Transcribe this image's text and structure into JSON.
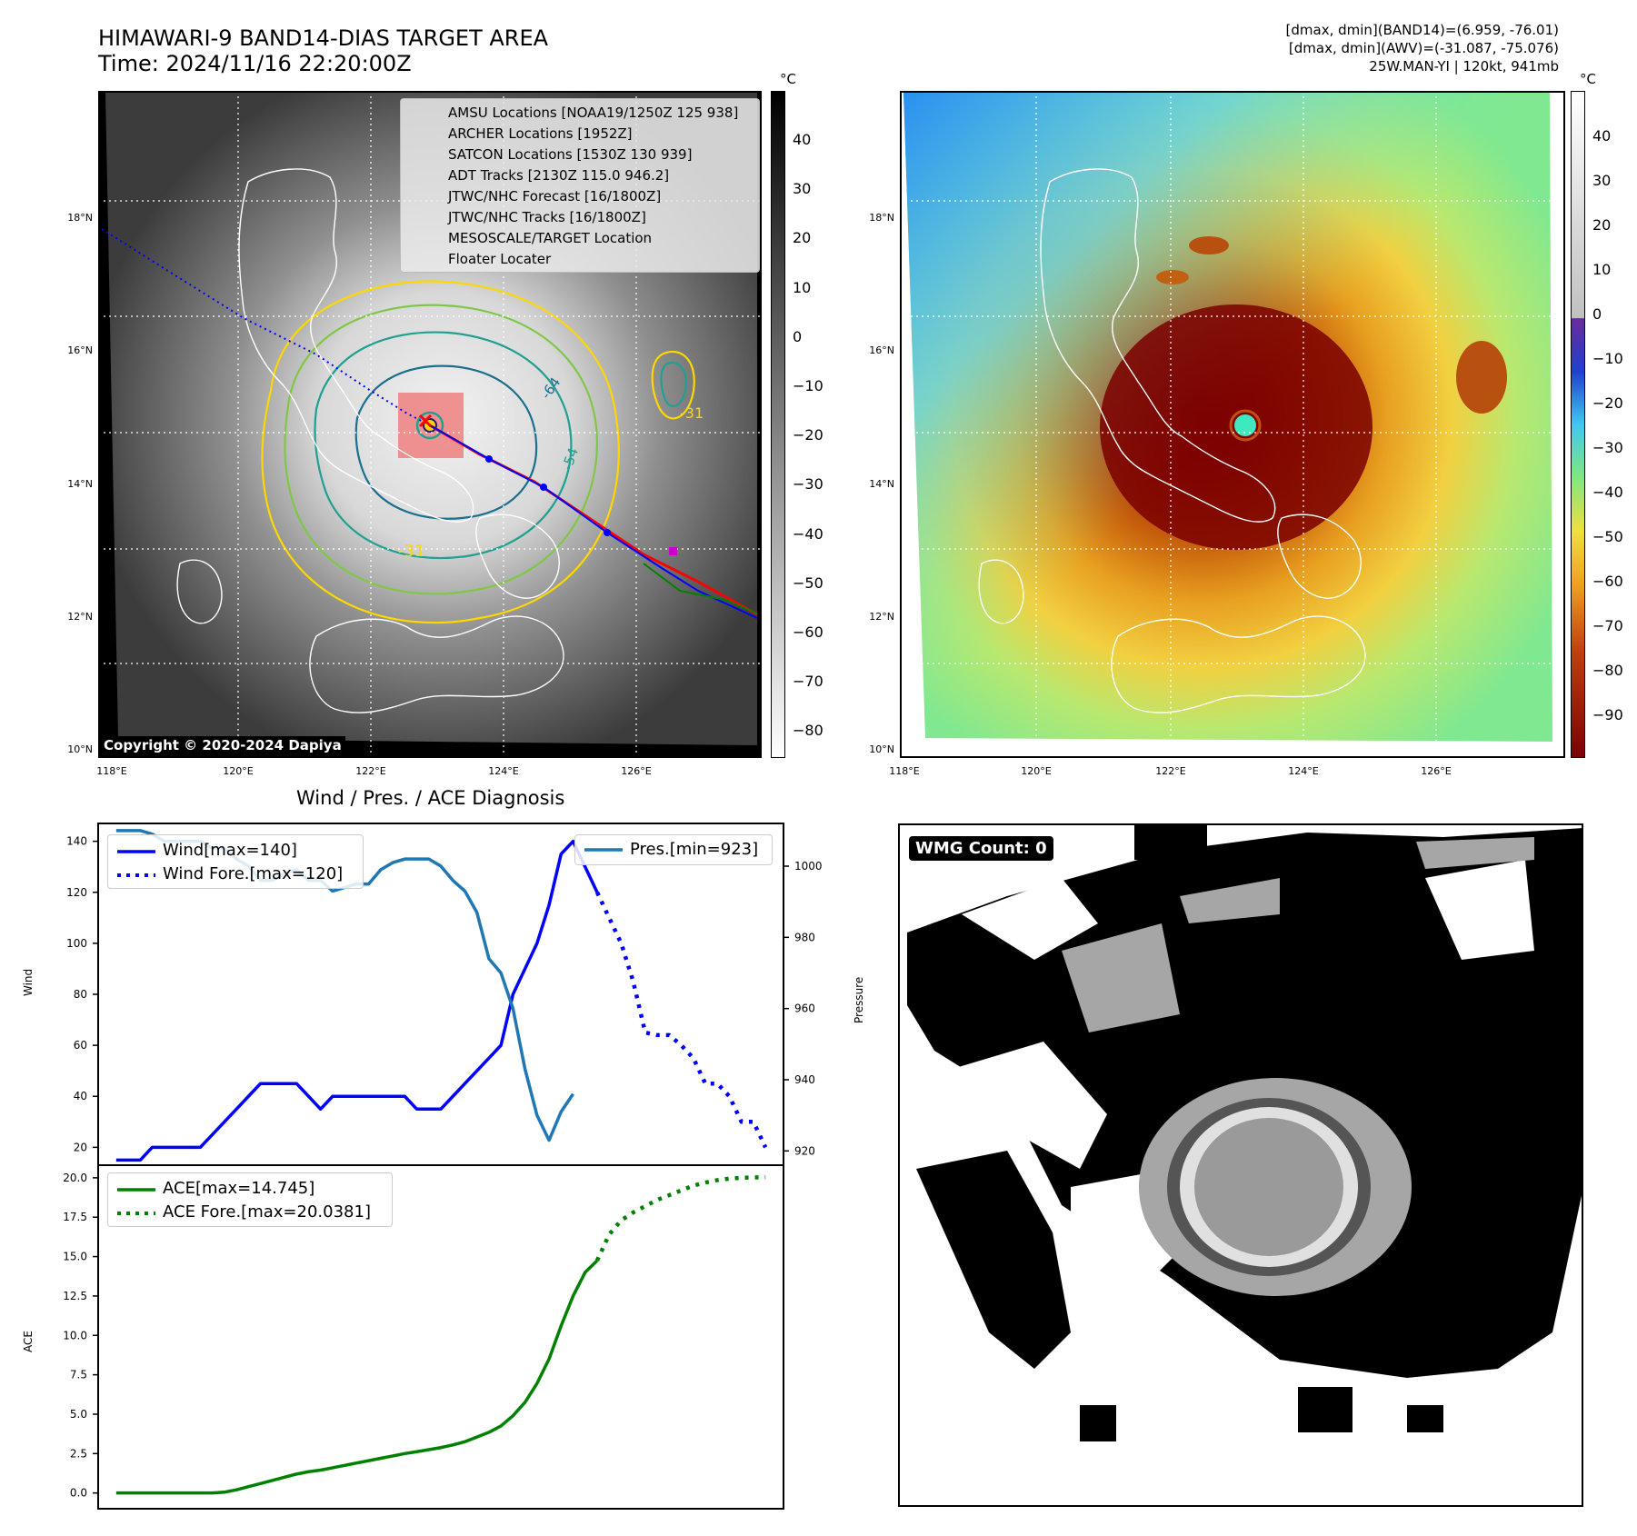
{
  "header": {
    "title_line1": "HIMAWARI-9 BAND14-DIAS TARGET AREA",
    "title_line2": "Time: 2024/11/16 22:20:00Z",
    "right_line1": "[dmax, dmin](BAND14)=(6.959, -76.01)",
    "right_line2": "[dmax, dmin](AWV)=(-31.087, -75.076)",
    "right_line3": "25W.MAN-YI | 120kt, 941mb"
  },
  "colors": {
    "wind": "#0000ff",
    "pressure": "#1f77b4",
    "ace": "#008000",
    "track_red": "#ff0000",
    "forecast_blue": "#0000ff",
    "amsu": "#cc00cc",
    "satcon": "#17becf"
  },
  "map_left": {
    "unit_label": "°C",
    "colorbar_ticks": [
      "40",
      "30",
      "20",
      "10",
      "0",
      "−10",
      "−20",
      "−30",
      "−40",
      "−50",
      "−60",
      "−70",
      "−80"
    ],
    "lat_labels": [
      "18°N",
      "16°N",
      "14°N",
      "12°N",
      "10°N"
    ],
    "lon_labels": [
      "118°E",
      "120°E",
      "122°E",
      "124°E",
      "126°E"
    ],
    "copyright": "Copyright © 2020-2024 Dapiya",
    "contour_labels": [
      "-31",
      "-31",
      "-54",
      "-64"
    ],
    "legend": [
      {
        "label": "AMSU Locations [NOAA19/1250Z 125 938]",
        "marker": "square",
        "color": "#cc00cc"
      },
      {
        "label": "ARCHER Locations [1952Z]",
        "marker": "square",
        "color": "#aa00aa"
      },
      {
        "label": "SATCON Locations [1530Z 130 939]",
        "marker": "x",
        "color": "#17becf"
      },
      {
        "label": "ADT Tracks [2130Z 115.0 946.2]",
        "marker": "line",
        "color": "#008000"
      },
      {
        "label": "JTWC/NHC Forecast [16/1800Z]",
        "marker": "dotted",
        "color": "#0000ff"
      },
      {
        "label": "JTWC/NHC Tracks [16/1800Z]",
        "marker": "linedot",
        "color": "#0000ff"
      },
      {
        "label": "MESOSCALE/TARGET Location",
        "marker": "x",
        "color": "#ff0000"
      },
      {
        "label": "Floater Locater",
        "marker": "line",
        "color": "#ff0000"
      }
    ]
  },
  "map_right": {
    "unit_label": "°C",
    "colorbar_ticks": [
      "40",
      "30",
      "20",
      "10",
      "0",
      "−10",
      "−20",
      "−30",
      "−40",
      "−50",
      "−60",
      "−70",
      "−80",
      "−90"
    ],
    "lat_labels": [
      "18°N",
      "16°N",
      "14°N",
      "12°N",
      "10°N"
    ],
    "lon_labels": [
      "118°E",
      "120°E",
      "122°E",
      "124°E",
      "126°E"
    ]
  },
  "wmg": {
    "count_label": "WMG Count: 0"
  },
  "chart_data": [
    {
      "type": "line",
      "title": "Wind / Pres. / ACE Diagnosis",
      "xlabel": "",
      "ylabel": "Wind",
      "ylabel_right": "Pressure",
      "x": [
        0,
        1,
        2,
        3,
        4,
        5,
        6,
        7,
        8,
        9,
        10,
        11,
        12,
        13,
        14,
        15,
        16,
        17,
        18,
        19,
        20,
        21,
        22,
        23,
        24,
        25,
        26,
        27,
        28,
        29,
        30,
        31,
        32,
        33,
        34,
        35,
        36,
        37,
        38,
        39,
        40,
        41,
        42,
        43,
        44,
        45,
        46,
        47,
        48,
        49,
        50,
        51,
        52,
        53,
        54
      ],
      "ylim": [
        13,
        147
      ],
      "ylim_right": [
        916,
        1012
      ],
      "yticks": [
        "140",
        "120",
        "100",
        "80",
        "60",
        "40",
        "20"
      ],
      "yticks_right": [
        "1000",
        "980",
        "960",
        "940",
        "920"
      ],
      "legend_left": [
        "Wind[max=140]",
        "Wind Fore.[max=120]"
      ],
      "legend_right": [
        "Pres.[min=923]"
      ],
      "series": [
        {
          "name": "Wind[max=140]",
          "style": "solid",
          "points": [
            [
              0,
              15
            ],
            [
              1,
              15
            ],
            [
              2,
              15
            ],
            [
              3,
              20
            ],
            [
              4,
              20
            ],
            [
              5,
              20
            ],
            [
              6,
              20
            ],
            [
              7,
              20
            ],
            [
              8,
              25
            ],
            [
              9,
              30
            ],
            [
              10,
              35
            ],
            [
              11,
              40
            ],
            [
              12,
              45
            ],
            [
              13,
              45
            ],
            [
              14,
              45
            ],
            [
              15,
              45
            ],
            [
              16,
              40
            ],
            [
              17,
              35
            ],
            [
              18,
              40
            ],
            [
              19,
              40
            ],
            [
              20,
              40
            ],
            [
              21,
              40
            ],
            [
              22,
              40
            ],
            [
              23,
              40
            ],
            [
              24,
              40
            ],
            [
              25,
              35
            ],
            [
              26,
              35
            ],
            [
              27,
              35
            ],
            [
              28,
              40
            ],
            [
              29,
              45
            ],
            [
              30,
              50
            ],
            [
              31,
              55
            ],
            [
              32,
              60
            ],
            [
              33,
              80
            ],
            [
              34,
              90
            ],
            [
              35,
              100
            ],
            [
              36,
              115
            ],
            [
              37,
              135
            ],
            [
              38,
              140
            ],
            [
              39,
              130
            ],
            [
              40,
              120
            ]
          ]
        },
        {
          "name": "Wind Fore.[max=120]",
          "style": "dotted",
          "points": [
            [
              40,
              120
            ],
            [
              41,
              110
            ],
            [
              42,
              100
            ],
            [
              43,
              85
            ],
            [
              44,
              65
            ],
            [
              45,
              64
            ],
            [
              46,
              64
            ],
            [
              47,
              60
            ],
            [
              48,
              55
            ],
            [
              49,
              45
            ],
            [
              50,
              45
            ],
            [
              51,
              40
            ],
            [
              52,
              30
            ],
            [
              53,
              30
            ],
            [
              54,
              20
            ]
          ]
        },
        {
          "name": "Pres.[min=923]",
          "style": "solid",
          "axis": "right",
          "points": [
            [
              0,
              1010
            ],
            [
              1,
              1010
            ],
            [
              2,
              1010
            ],
            [
              3,
              1009
            ],
            [
              4,
              1007
            ],
            [
              5,
              1007
            ],
            [
              6,
              1007
            ],
            [
              7,
              1007
            ],
            [
              8,
              1005
            ],
            [
              9,
              1005
            ],
            [
              10,
              1002
            ],
            [
              11,
              1000
            ],
            [
              12,
              996
            ],
            [
              13,
              996
            ],
            [
              14,
              998
            ],
            [
              15,
              999
            ],
            [
              16,
              996
            ],
            [
              17,
              996
            ],
            [
              18,
              993
            ],
            [
              19,
              994
            ],
            [
              20,
              995
            ],
            [
              21,
              995
            ],
            [
              22,
              999
            ],
            [
              23,
              1001
            ],
            [
              24,
              1002
            ],
            [
              25,
              1002
            ],
            [
              26,
              1002
            ],
            [
              27,
              1000
            ],
            [
              28,
              996
            ],
            [
              29,
              993
            ],
            [
              30,
              987
            ],
            [
              31,
              974
            ],
            [
              32,
              970
            ],
            [
              33,
              960
            ],
            [
              34,
              943
            ],
            [
              35,
              930
            ],
            [
              36,
              923
            ],
            [
              37,
              931
            ],
            [
              38,
              936
            ]
          ]
        }
      ]
    },
    {
      "type": "line",
      "title": "",
      "xlabel": "",
      "ylabel": "ACE",
      "ylim": [
        -1,
        20.8
      ],
      "yticks": [
        "20.0",
        "17.5",
        "15.0",
        "12.5",
        "10.0",
        "7.5",
        "5.0",
        "2.5",
        "0.0"
      ],
      "legend": [
        "ACE[max=14.745]",
        "ACE Fore.[max=20.0381]"
      ],
      "series": [
        {
          "name": "ACE[max=14.745]",
          "style": "solid",
          "points": [
            [
              0,
              0
            ],
            [
              1,
              0
            ],
            [
              2,
              0
            ],
            [
              3,
              0
            ],
            [
              4,
              0
            ],
            [
              5,
              0
            ],
            [
              6,
              0
            ],
            [
              7,
              0
            ],
            [
              8,
              0
            ],
            [
              9,
              0.05
            ],
            [
              10,
              0.2
            ],
            [
              11,
              0.4
            ],
            [
              12,
              0.6
            ],
            [
              13,
              0.8
            ],
            [
              14,
              1.0
            ],
            [
              15,
              1.2
            ],
            [
              16,
              1.35
            ],
            [
              17,
              1.45
            ],
            [
              18,
              1.6
            ],
            [
              19,
              1.75
            ],
            [
              20,
              1.9
            ],
            [
              21,
              2.05
            ],
            [
              22,
              2.2
            ],
            [
              23,
              2.35
            ],
            [
              24,
              2.5
            ],
            [
              25,
              2.62
            ],
            [
              26,
              2.75
            ],
            [
              27,
              2.88
            ],
            [
              28,
              3.05
            ],
            [
              29,
              3.25
            ],
            [
              30,
              3.55
            ],
            [
              31,
              3.85
            ],
            [
              32,
              4.25
            ],
            [
              33,
              4.9
            ],
            [
              34,
              5.75
            ],
            [
              35,
              6.95
            ],
            [
              36,
              8.5
            ],
            [
              37,
              10.6
            ],
            [
              38,
              12.5
            ],
            [
              39,
              14.0
            ],
            [
              40,
              14.745
            ]
          ]
        },
        {
          "name": "ACE Fore.[max=20.0381]",
          "style": "dotted",
          "points": [
            [
              40,
              14.745
            ],
            [
              41,
              16.4
            ],
            [
              42,
              17.3
            ],
            [
              43,
              17.8
            ],
            [
              44,
              18.2
            ],
            [
              45,
              18.6
            ],
            [
              46,
              18.9
            ],
            [
              47,
              19.2
            ],
            [
              48,
              19.5
            ],
            [
              49,
              19.7
            ],
            [
              50,
              19.85
            ],
            [
              51,
              19.95
            ],
            [
              52,
              20.0
            ],
            [
              53,
              20.02
            ],
            [
              54,
              20.0381
            ]
          ]
        }
      ]
    }
  ]
}
